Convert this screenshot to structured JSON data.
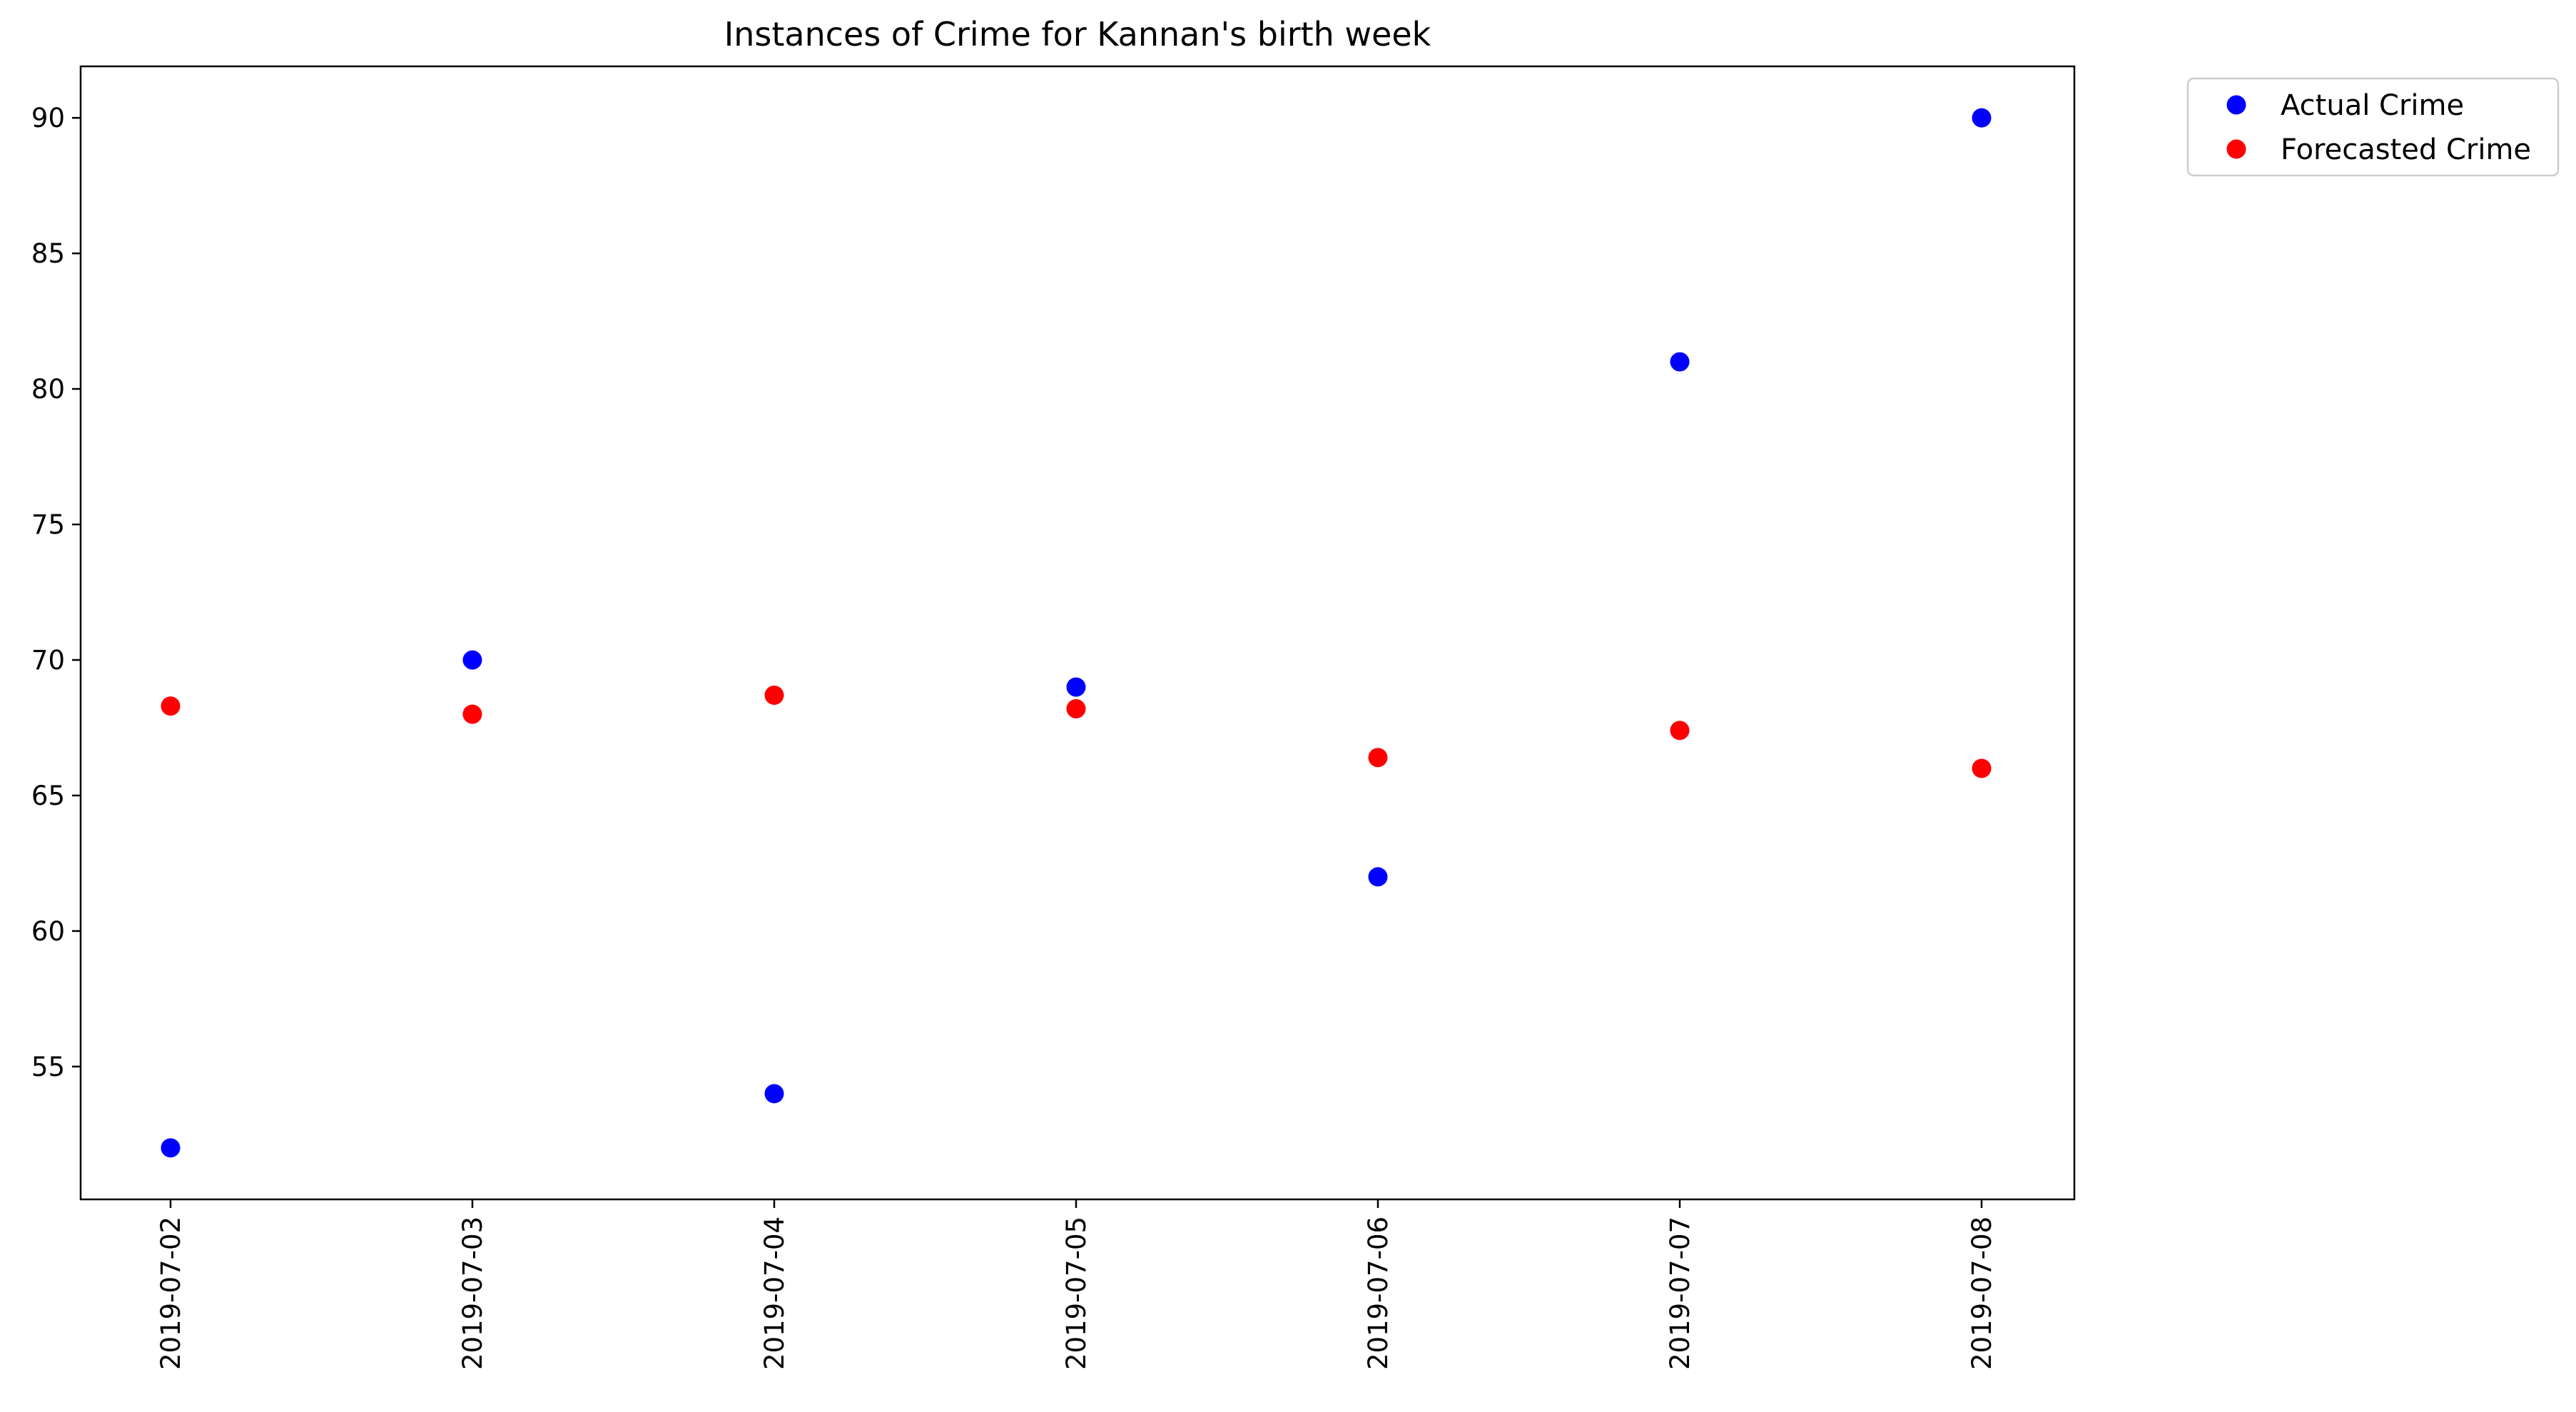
{
  "chart_data": {
    "type": "scatter",
    "title": "Instances of Crime for Kannan's birth week",
    "xlabel": "",
    "ylabel": "",
    "x": [
      "2019-07-02",
      "2019-07-03",
      "2019-07-04",
      "2019-07-05",
      "2019-07-06",
      "2019-07-07",
      "2019-07-08"
    ],
    "series": [
      {
        "name": "Actual Crime",
        "color": "#0000ff",
        "values": [
          52,
          70,
          54,
          69,
          62,
          81,
          90
        ]
      },
      {
        "name": "Forecasted Crime",
        "color": "#ff0000",
        "values": [
          68.3,
          68.0,
          68.7,
          68.2,
          66.4,
          67.4,
          66.0
        ]
      }
    ],
    "yticks": [
      55,
      60,
      65,
      70,
      75,
      80,
      85,
      90
    ],
    "ylim": [
      50.1,
      91.9
    ],
    "grid": false,
    "legend_position": "outside-top-right"
  }
}
